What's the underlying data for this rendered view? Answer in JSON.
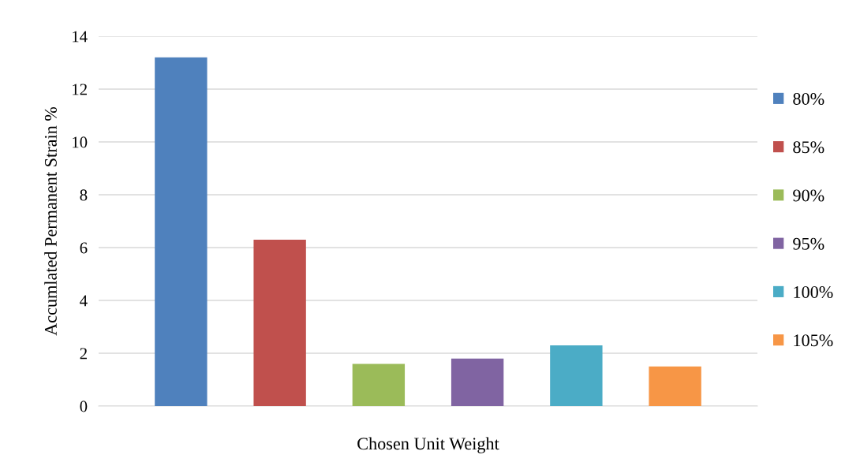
{
  "chart_data": {
    "type": "bar",
    "xlabel": "Chosen Unit Weight",
    "ylabel": "Accumlated Permanent Strain %",
    "categories": [
      null
    ],
    "series": [
      {
        "name": "80%",
        "color": "#4f81bd",
        "values": [
          13.2
        ]
      },
      {
        "name": "85%",
        "color": "#c0504d",
        "values": [
          6.3
        ]
      },
      {
        "name": "90%",
        "color": "#9bbb59",
        "values": [
          1.6
        ]
      },
      {
        "name": "95%",
        "color": "#8064a2",
        "values": [
          1.8
        ]
      },
      {
        "name": "100%",
        "color": "#4bacc6",
        "values": [
          2.3
        ]
      },
      {
        "name": "105%",
        "color": "#f79646",
        "values": [
          1.5
        ]
      }
    ],
    "ylim": [
      0,
      14
    ],
    "yticks": [
      0,
      2,
      4,
      6,
      8,
      10,
      12,
      14
    ],
    "grid": "y",
    "legend": "right"
  }
}
